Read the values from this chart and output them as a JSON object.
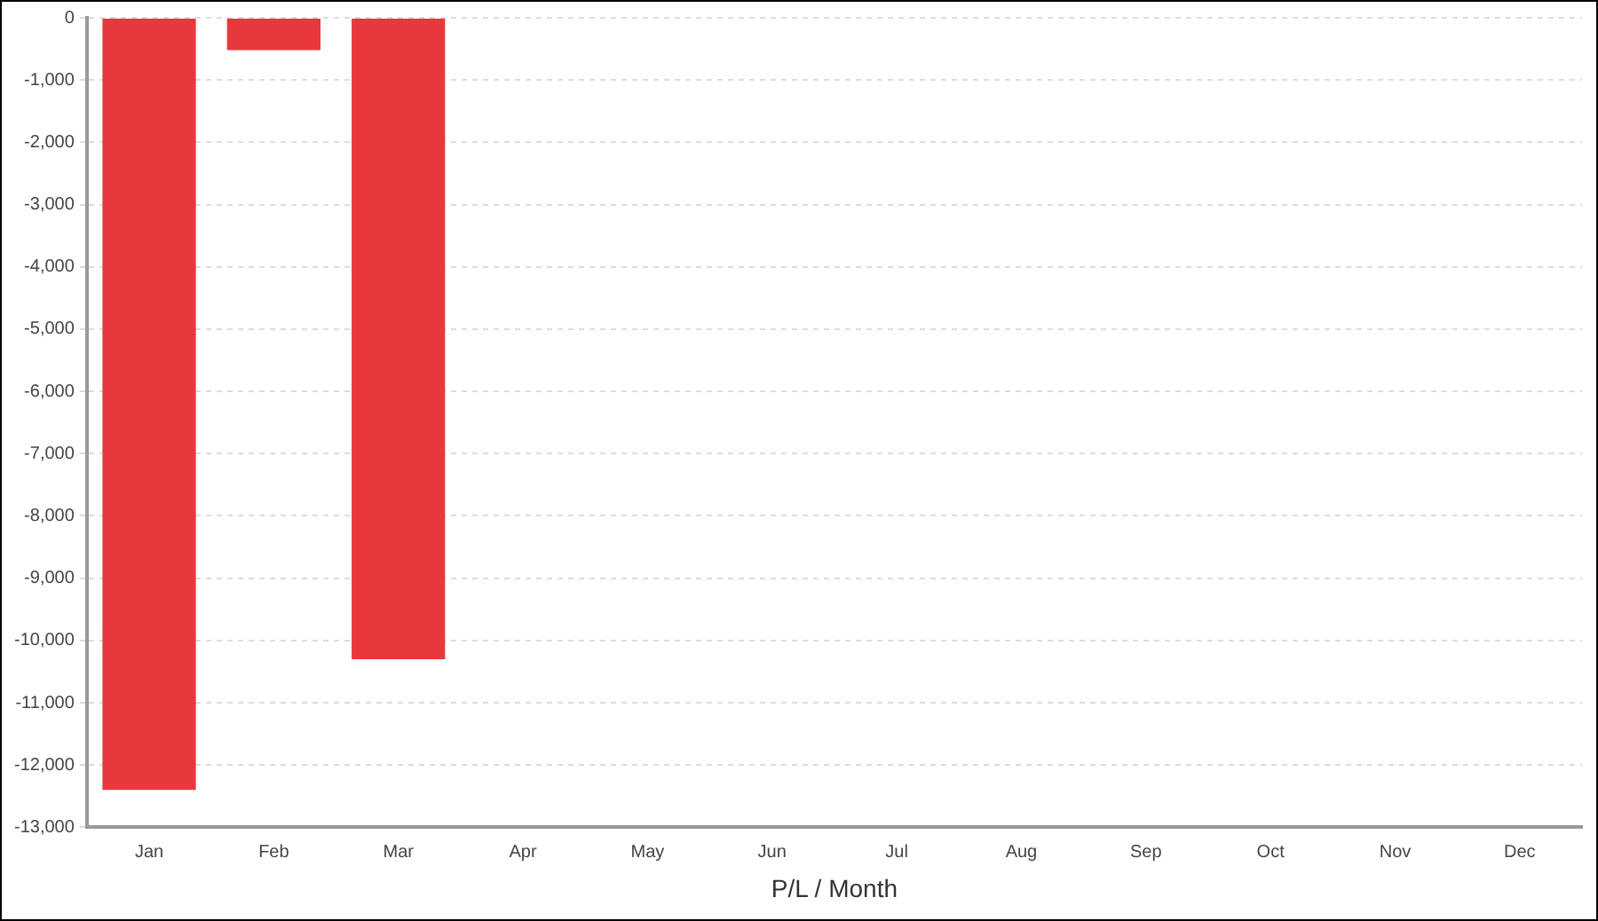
{
  "chart_data": {
    "type": "bar",
    "xlabel": "P/L / Month",
    "categories": [
      "Jan",
      "Feb",
      "Mar",
      "Apr",
      "May",
      "Jun",
      "Jul",
      "Aug",
      "Sep",
      "Oct",
      "Nov",
      "Dec"
    ],
    "values": [
      -12400,
      -520,
      -10300,
      null,
      null,
      null,
      null,
      null,
      null,
      null,
      null,
      null
    ],
    "color": "#e8383d",
    "ylim": [
      -13000,
      0
    ],
    "yticks": [
      {
        "value": -13000,
        "label": "-13,000"
      },
      {
        "value": -12000,
        "label": "-12,000"
      },
      {
        "value": -11000,
        "label": "-11,000"
      },
      {
        "value": -10000,
        "label": "-10,000"
      },
      {
        "value": -9000,
        "label": "-9,000"
      },
      {
        "value": -8000,
        "label": "-8,000"
      },
      {
        "value": -7000,
        "label": "-7,000"
      },
      {
        "value": -6000,
        "label": "-6,000"
      },
      {
        "value": -5000,
        "label": "-5,000"
      },
      {
        "value": -4000,
        "label": "-4,000"
      },
      {
        "value": -3000,
        "label": "-3,000"
      },
      {
        "value": -2000,
        "label": "-2,000"
      },
      {
        "value": -1000,
        "label": "-1,000"
      },
      {
        "value": 0,
        "label": "0"
      }
    ],
    "grid": "y"
  }
}
